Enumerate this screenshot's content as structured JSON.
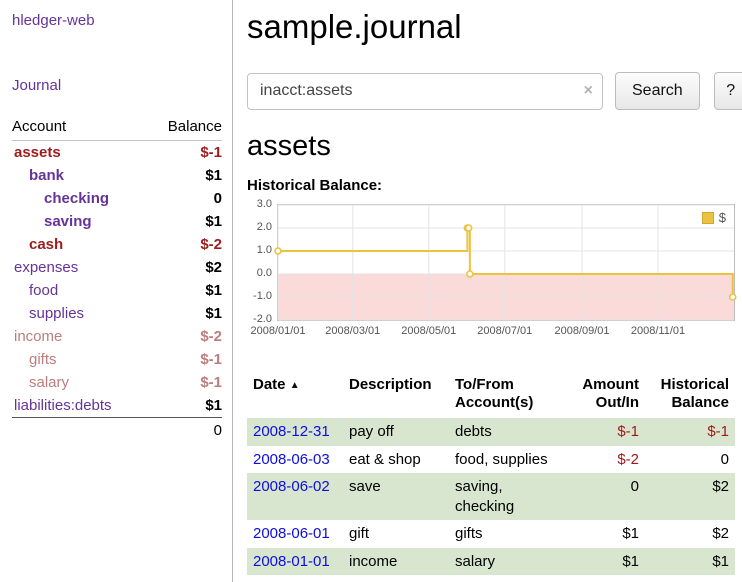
{
  "colors": {
    "link_purple": "#663399",
    "date_blue": "#0d0de0",
    "negative_strong": "#9d1d1d",
    "negative_muted": "#bb7e7e",
    "row_green": "#d8e6cf"
  },
  "sidebar": {
    "app_title": "hledger-web",
    "journal_link": "Journal",
    "accounts": {
      "headers": {
        "account": "Account",
        "balance": "Balance"
      },
      "rows": [
        {
          "name": "assets",
          "balance": "$-1",
          "indent": 0,
          "bold": true,
          "neg_name": true,
          "neg_bal": true,
          "muted": false
        },
        {
          "name": "bank",
          "balance": "$1",
          "indent": 1,
          "bold": true,
          "neg_name": false,
          "neg_bal": false,
          "muted": false
        },
        {
          "name": "checking",
          "balance": "0",
          "indent": 2,
          "bold": true,
          "neg_name": false,
          "neg_bal": false,
          "muted": false
        },
        {
          "name": "saving",
          "balance": "$1",
          "indent": 2,
          "bold": true,
          "neg_name": false,
          "neg_bal": false,
          "muted": false
        },
        {
          "name": "cash",
          "balance": "$-2",
          "indent": 1,
          "bold": true,
          "neg_name": true,
          "neg_bal": true,
          "muted": false
        },
        {
          "name": "expenses",
          "balance": "$2",
          "indent": 0,
          "bold": false,
          "neg_name": false,
          "neg_bal": false,
          "muted": false
        },
        {
          "name": "food",
          "balance": "$1",
          "indent": 1,
          "bold": false,
          "neg_name": false,
          "neg_bal": false,
          "muted": false
        },
        {
          "name": "supplies",
          "balance": "$1",
          "indent": 1,
          "bold": false,
          "neg_name": false,
          "neg_bal": false,
          "muted": false
        },
        {
          "name": "income",
          "balance": "$-2",
          "indent": 0,
          "bold": false,
          "neg_name": true,
          "neg_bal": true,
          "muted": true
        },
        {
          "name": "gifts",
          "balance": "$-1",
          "indent": 1,
          "bold": false,
          "neg_name": true,
          "neg_bal": true,
          "muted": true
        },
        {
          "name": "salary",
          "balance": "$-1",
          "indent": 1,
          "bold": false,
          "neg_name": true,
          "neg_bal": true,
          "muted": true
        },
        {
          "name": "liabilities:debts",
          "balance": "$1",
          "indent": 0,
          "bold": false,
          "neg_name": false,
          "neg_bal": false,
          "muted": false
        }
      ],
      "total": "0"
    }
  },
  "main": {
    "title": "sample.journal",
    "search": {
      "value": "inacct:assets",
      "clear_label": "×",
      "button_label": "Search",
      "help_label": "?"
    },
    "account_heading": "assets",
    "chart_title": "Historical Balance:"
  },
  "register": {
    "headers": [
      "Date",
      "Description",
      "To/From Account(s)",
      "Amount Out/In",
      "Historical Balance"
    ],
    "sort_indicator": "▲",
    "rows": [
      {
        "date": "2008-12-31",
        "description": "pay off",
        "accounts": "debts",
        "amount": "$-1",
        "amount_neg": true,
        "balance": "$-1",
        "balance_neg": true,
        "shaded": true
      },
      {
        "date": "2008-06-03",
        "description": "eat & shop",
        "accounts": "food, supplies",
        "amount": "$-2",
        "amount_neg": true,
        "balance": "0",
        "balance_neg": false,
        "shaded": false
      },
      {
        "date": "2008-06-02",
        "description": "save",
        "accounts": "saving, checking",
        "amount": "0",
        "amount_neg": false,
        "balance": "$2",
        "balance_neg": false,
        "shaded": true
      },
      {
        "date": "2008-06-01",
        "description": "gift",
        "accounts": "gifts",
        "amount": "$1",
        "amount_neg": false,
        "balance": "$2",
        "balance_neg": false,
        "shaded": false
      },
      {
        "date": "2008-01-01",
        "description": "income",
        "accounts": "salary",
        "amount": "$1",
        "amount_neg": false,
        "balance": "$1",
        "balance_neg": false,
        "shaded": true
      }
    ]
  },
  "chart_data": {
    "type": "line",
    "step": true,
    "title": "Historical Balance:",
    "legend": "$",
    "legend_position": "top-right",
    "grid": true,
    "xrange": [
      "2008-01-01",
      "2009-01-01"
    ],
    "ylim": [
      -2,
      3
    ],
    "yticks": [
      "3.0",
      "2.0",
      "1.0",
      "0.0",
      "-1.0",
      "-2.0"
    ],
    "xticks": [
      "2008/01/01",
      "2008/03/01",
      "2008/05/01",
      "2008/07/01",
      "2008/09/01",
      "2008/11/01"
    ],
    "negative_fill": "#fbdada",
    "series": [
      {
        "name": "$",
        "color": "#edc240",
        "points": [
          {
            "date": "2008-01-01",
            "value": 1
          },
          {
            "date": "2008-06-01",
            "value": 2
          },
          {
            "date": "2008-06-02",
            "value": 2
          },
          {
            "date": "2008-06-03",
            "value": 0
          },
          {
            "date": "2008-12-31",
            "value": -1
          }
        ]
      }
    ]
  }
}
